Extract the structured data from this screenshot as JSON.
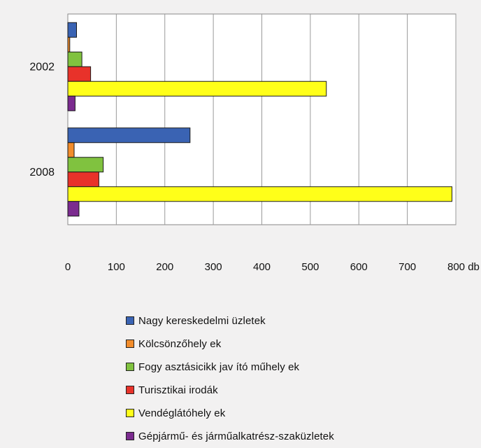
{
  "chart_data": {
    "type": "bar",
    "orientation": "horizontal",
    "categories": [
      "2002",
      "2008"
    ],
    "series": [
      {
        "name": "Nagy kereskedelmi üzletek",
        "color": "#3a63b3",
        "values": [
          18,
          252
        ]
      },
      {
        "name": "Kölcsönzőhely ek",
        "color": "#f28c2b",
        "values": [
          4,
          13
        ]
      },
      {
        "name": "Fogy asztásicikk jav ító műhely ek",
        "color": "#80c23f",
        "values": [
          29,
          73
        ]
      },
      {
        "name": "Turisztikai irodák",
        "color": "#e8322a",
        "values": [
          47,
          64
        ]
      },
      {
        "name": "Vendéglátóhely ek",
        "color": "#ffff19",
        "values": [
          533,
          792
        ]
      },
      {
        "name": "Gépjármű- és járműalkatrész-szaküzletek",
        "color": "#7b2b8f",
        "values": [
          15,
          23
        ]
      }
    ],
    "x_ticks": [
      "0",
      "100",
      "200",
      "300",
      "400",
      "500",
      "600",
      "700",
      "800 db"
    ],
    "xlim": [
      0,
      800
    ],
    "grid": true,
    "legend_position": "bottom",
    "title": "",
    "xlabel": "",
    "ylabel": ""
  }
}
